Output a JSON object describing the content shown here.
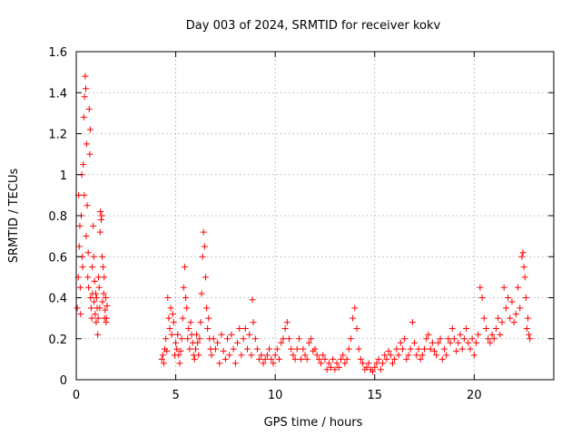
{
  "chart_data": {
    "type": "scatter",
    "title": "Day 003 of 2024, SRMTID for receiver kokv",
    "xlabel": "GPS time / hours",
    "ylabel": "SRMTID / TECUs",
    "xlim": [
      0,
      24
    ],
    "ylim": [
      0,
      1.6
    ],
    "x_ticks": [
      0,
      5,
      10,
      15,
      20
    ],
    "x_tick_labels": [
      "0",
      "5",
      "10",
      "15",
      "20"
    ],
    "y_ticks": [
      0,
      0.2,
      0.4,
      0.6,
      0.8,
      1,
      1.2,
      1.4,
      1.6
    ],
    "y_tick_labels": [
      "0",
      "0.2",
      "0.4",
      "0.6",
      "0.8",
      "1",
      "1.2",
      "1.4",
      "1.6"
    ],
    "grid": true,
    "marker": "+",
    "color": "#ff0000",
    "series": [
      {
        "name": "SRMTID",
        "points": [
          [
            0.05,
            0.35
          ],
          [
            0.1,
            0.5
          ],
          [
            0.12,
            0.9
          ],
          [
            0.15,
            0.65
          ],
          [
            0.18,
            0.75
          ],
          [
            0.2,
            0.45
          ],
          [
            0.22,
            0.32
          ],
          [
            0.25,
            0.8
          ],
          [
            0.28,
            1.0
          ],
          [
            0.3,
            0.6
          ],
          [
            0.32,
            0.55
          ],
          [
            0.35,
            1.05
          ],
          [
            0.38,
            1.28
          ],
          [
            0.4,
            0.9
          ],
          [
            0.42,
            1.38
          ],
          [
            0.45,
            1.48
          ],
          [
            0.48,
            1.42
          ],
          [
            0.5,
            0.7
          ],
          [
            0.52,
            1.15
          ],
          [
            0.55,
            0.85
          ],
          [
            0.58,
            0.5
          ],
          [
            0.6,
            0.62
          ],
          [
            0.62,
            0.45
          ],
          [
            0.65,
            1.32
          ],
          [
            0.68,
            1.1
          ],
          [
            0.7,
            1.22
          ],
          [
            0.72,
            0.4
          ],
          [
            0.75,
            0.35
          ],
          [
            0.78,
            0.3
          ],
          [
            0.8,
            0.55
          ],
          [
            0.82,
            0.42
          ],
          [
            0.85,
            0.75
          ],
          [
            0.88,
            0.6
          ],
          [
            0.9,
            0.38
          ],
          [
            0.92,
            0.48
          ],
          [
            0.95,
            0.32
          ],
          [
            0.98,
            0.42
          ],
          [
            1.0,
            0.28
          ],
          [
            1.02,
            0.4
          ],
          [
            1.05,
            0.35
          ],
          [
            1.08,
            0.22
          ],
          [
            1.1,
            0.3
          ],
          [
            1.12,
            0.5
          ],
          [
            1.15,
            0.45
          ],
          [
            1.18,
            0.35
          ],
          [
            1.2,
            0.72
          ],
          [
            1.22,
            0.82
          ],
          [
            1.25,
            0.78
          ],
          [
            1.28,
            0.8
          ],
          [
            1.3,
            0.6
          ],
          [
            1.32,
            0.38
          ],
          [
            1.35,
            0.55
          ],
          [
            1.38,
            0.42
          ],
          [
            1.4,
            0.5
          ],
          [
            1.42,
            0.3
          ],
          [
            1.45,
            0.34
          ],
          [
            1.48,
            0.4
          ],
          [
            1.5,
            0.28
          ],
          [
            1.52,
            0.3
          ],
          [
            1.55,
            0.36
          ],
          [
            4.3,
            0.1
          ],
          [
            4.35,
            0.12
          ],
          [
            4.4,
            0.08
          ],
          [
            4.45,
            0.15
          ],
          [
            4.5,
            0.2
          ],
          [
            4.55,
            0.14
          ],
          [
            4.6,
            0.4
          ],
          [
            4.65,
            0.3
          ],
          [
            4.7,
            0.25
          ],
          [
            4.75,
            0.35
          ],
          [
            4.8,
            0.22
          ],
          [
            4.85,
            0.32
          ],
          [
            4.9,
            0.28
          ],
          [
            4.95,
            0.12
          ],
          [
            5.0,
            0.18
          ],
          [
            5.05,
            0.15
          ],
          [
            5.1,
            0.22
          ],
          [
            5.15,
            0.12
          ],
          [
            5.2,
            0.08
          ],
          [
            5.25,
            0.14
          ],
          [
            5.3,
            0.2
          ],
          [
            5.35,
            0.3
          ],
          [
            5.4,
            0.45
          ],
          [
            5.45,
            0.55
          ],
          [
            5.5,
            0.4
          ],
          [
            5.55,
            0.35
          ],
          [
            5.6,
            0.2
          ],
          [
            5.65,
            0.25
          ],
          [
            5.7,
            0.15
          ],
          [
            5.75,
            0.28
          ],
          [
            5.8,
            0.22
          ],
          [
            5.85,
            0.18
          ],
          [
            5.9,
            0.12
          ],
          [
            5.95,
            0.1
          ],
          [
            6.0,
            0.15
          ],
          [
            6.05,
            0.22
          ],
          [
            6.1,
            0.18
          ],
          [
            6.15,
            0.12
          ],
          [
            6.2,
            0.2
          ],
          [
            6.25,
            0.28
          ],
          [
            6.3,
            0.42
          ],
          [
            6.35,
            0.6
          ],
          [
            6.4,
            0.72
          ],
          [
            6.45,
            0.65
          ],
          [
            6.5,
            0.5
          ],
          [
            6.55,
            0.35
          ],
          [
            6.6,
            0.25
          ],
          [
            6.65,
            0.3
          ],
          [
            6.7,
            0.2
          ],
          [
            6.75,
            0.15
          ],
          [
            6.8,
            0.12
          ],
          [
            6.9,
            0.2
          ],
          [
            7.0,
            0.15
          ],
          [
            7.1,
            0.18
          ],
          [
            7.2,
            0.08
          ],
          [
            7.3,
            0.22
          ],
          [
            7.4,
            0.14
          ],
          [
            7.5,
            0.1
          ],
          [
            7.6,
            0.2
          ],
          [
            7.7,
            0.12
          ],
          [
            7.8,
            0.22
          ],
          [
            7.9,
            0.15
          ],
          [
            8.0,
            0.08
          ],
          [
            8.1,
            0.18
          ],
          [
            8.2,
            0.25
          ],
          [
            8.3,
            0.12
          ],
          [
            8.4,
            0.2
          ],
          [
            8.5,
            0.25
          ],
          [
            8.6,
            0.15
          ],
          [
            8.7,
            0.22
          ],
          [
            8.8,
            0.12
          ],
          [
            8.85,
            0.39
          ],
          [
            8.9,
            0.28
          ],
          [
            9.0,
            0.2
          ],
          [
            9.1,
            0.15
          ],
          [
            9.2,
            0.1
          ],
          [
            9.3,
            0.12
          ],
          [
            9.4,
            0.08
          ],
          [
            9.5,
            0.1
          ],
          [
            9.6,
            0.12
          ],
          [
            9.7,
            0.15
          ],
          [
            9.8,
            0.1
          ],
          [
            9.9,
            0.08
          ],
          [
            10.0,
            0.12
          ],
          [
            10.1,
            0.15
          ],
          [
            10.2,
            0.1
          ],
          [
            10.3,
            0.18
          ],
          [
            10.4,
            0.2
          ],
          [
            10.5,
            0.25
          ],
          [
            10.6,
            0.28
          ],
          [
            10.7,
            0.2
          ],
          [
            10.8,
            0.15
          ],
          [
            10.9,
            0.12
          ],
          [
            11.0,
            0.1
          ],
          [
            11.1,
            0.15
          ],
          [
            11.2,
            0.2
          ],
          [
            11.3,
            0.1
          ],
          [
            11.4,
            0.15
          ],
          [
            11.5,
            0.12
          ],
          [
            11.6,
            0.1
          ],
          [
            11.7,
            0.18
          ],
          [
            11.8,
            0.2
          ],
          [
            11.9,
            0.14
          ],
          [
            12.0,
            0.15
          ],
          [
            12.1,
            0.12
          ],
          [
            12.2,
            0.1
          ],
          [
            12.3,
            0.08
          ],
          [
            12.4,
            0.12
          ],
          [
            12.5,
            0.1
          ],
          [
            12.6,
            0.05
          ],
          [
            12.7,
            0.08
          ],
          [
            12.8,
            0.06
          ],
          [
            12.9,
            0.1
          ],
          [
            13.0,
            0.05
          ],
          [
            13.1,
            0.08
          ],
          [
            13.2,
            0.06
          ],
          [
            13.3,
            0.1
          ],
          [
            13.4,
            0.12
          ],
          [
            13.5,
            0.08
          ],
          [
            13.6,
            0.1
          ],
          [
            13.7,
            0.15
          ],
          [
            13.8,
            0.2
          ],
          [
            13.9,
            0.3
          ],
          [
            14.0,
            0.35
          ],
          [
            14.1,
            0.25
          ],
          [
            14.2,
            0.15
          ],
          [
            14.3,
            0.1
          ],
          [
            14.4,
            0.08
          ],
          [
            14.5,
            0.05
          ],
          [
            14.6,
            0.06
          ],
          [
            14.7,
            0.08
          ],
          [
            14.8,
            0.05
          ],
          [
            14.9,
            0.04
          ],
          [
            15.0,
            0.06
          ],
          [
            15.1,
            0.08
          ],
          [
            15.2,
            0.1
          ],
          [
            15.3,
            0.05
          ],
          [
            15.4,
            0.08
          ],
          [
            15.5,
            0.12
          ],
          [
            15.6,
            0.1
          ],
          [
            15.7,
            0.14
          ],
          [
            15.8,
            0.12
          ],
          [
            15.9,
            0.08
          ],
          [
            16.0,
            0.1
          ],
          [
            16.1,
            0.15
          ],
          [
            16.2,
            0.12
          ],
          [
            16.3,
            0.18
          ],
          [
            16.4,
            0.15
          ],
          [
            16.5,
            0.2
          ],
          [
            16.6,
            0.1
          ],
          [
            16.7,
            0.12
          ],
          [
            16.8,
            0.15
          ],
          [
            16.9,
            0.28
          ],
          [
            17.0,
            0.18
          ],
          [
            17.1,
            0.12
          ],
          [
            17.2,
            0.15
          ],
          [
            17.3,
            0.1
          ],
          [
            17.4,
            0.12
          ],
          [
            17.5,
            0.15
          ],
          [
            17.6,
            0.2
          ],
          [
            17.7,
            0.22
          ],
          [
            17.8,
            0.15
          ],
          [
            17.9,
            0.18
          ],
          [
            18.0,
            0.14
          ],
          [
            18.1,
            0.12
          ],
          [
            18.2,
            0.18
          ],
          [
            18.3,
            0.2
          ],
          [
            18.4,
            0.1
          ],
          [
            18.5,
            0.15
          ],
          [
            18.6,
            0.12
          ],
          [
            18.7,
            0.2
          ],
          [
            18.8,
            0.18
          ],
          [
            18.9,
            0.25
          ],
          [
            19.0,
            0.2
          ],
          [
            19.1,
            0.14
          ],
          [
            19.2,
            0.18
          ],
          [
            19.3,
            0.22
          ],
          [
            19.4,
            0.15
          ],
          [
            19.5,
            0.2
          ],
          [
            19.6,
            0.25
          ],
          [
            19.7,
            0.18
          ],
          [
            19.8,
            0.15
          ],
          [
            19.9,
            0.2
          ],
          [
            20.0,
            0.12
          ],
          [
            20.1,
            0.18
          ],
          [
            20.2,
            0.22
          ],
          [
            20.3,
            0.45
          ],
          [
            20.4,
            0.4
          ],
          [
            20.5,
            0.3
          ],
          [
            20.6,
            0.25
          ],
          [
            20.7,
            0.2
          ],
          [
            20.8,
            0.18
          ],
          [
            20.9,
            0.22
          ],
          [
            21.0,
            0.2
          ],
          [
            21.1,
            0.25
          ],
          [
            21.2,
            0.3
          ],
          [
            21.3,
            0.22
          ],
          [
            21.4,
            0.28
          ],
          [
            21.5,
            0.45
          ],
          [
            21.6,
            0.35
          ],
          [
            21.7,
            0.4
          ],
          [
            21.8,
            0.3
          ],
          [
            21.9,
            0.38
          ],
          [
            22.0,
            0.28
          ],
          [
            22.1,
            0.32
          ],
          [
            22.2,
            0.45
          ],
          [
            22.3,
            0.35
          ],
          [
            22.4,
            0.6
          ],
          [
            22.45,
            0.62
          ],
          [
            22.5,
            0.55
          ],
          [
            22.55,
            0.5
          ],
          [
            22.6,
            0.4
          ],
          [
            22.65,
            0.25
          ],
          [
            22.7,
            0.3
          ],
          [
            22.75,
            0.22
          ],
          [
            22.8,
            0.2
          ]
        ]
      }
    ]
  }
}
